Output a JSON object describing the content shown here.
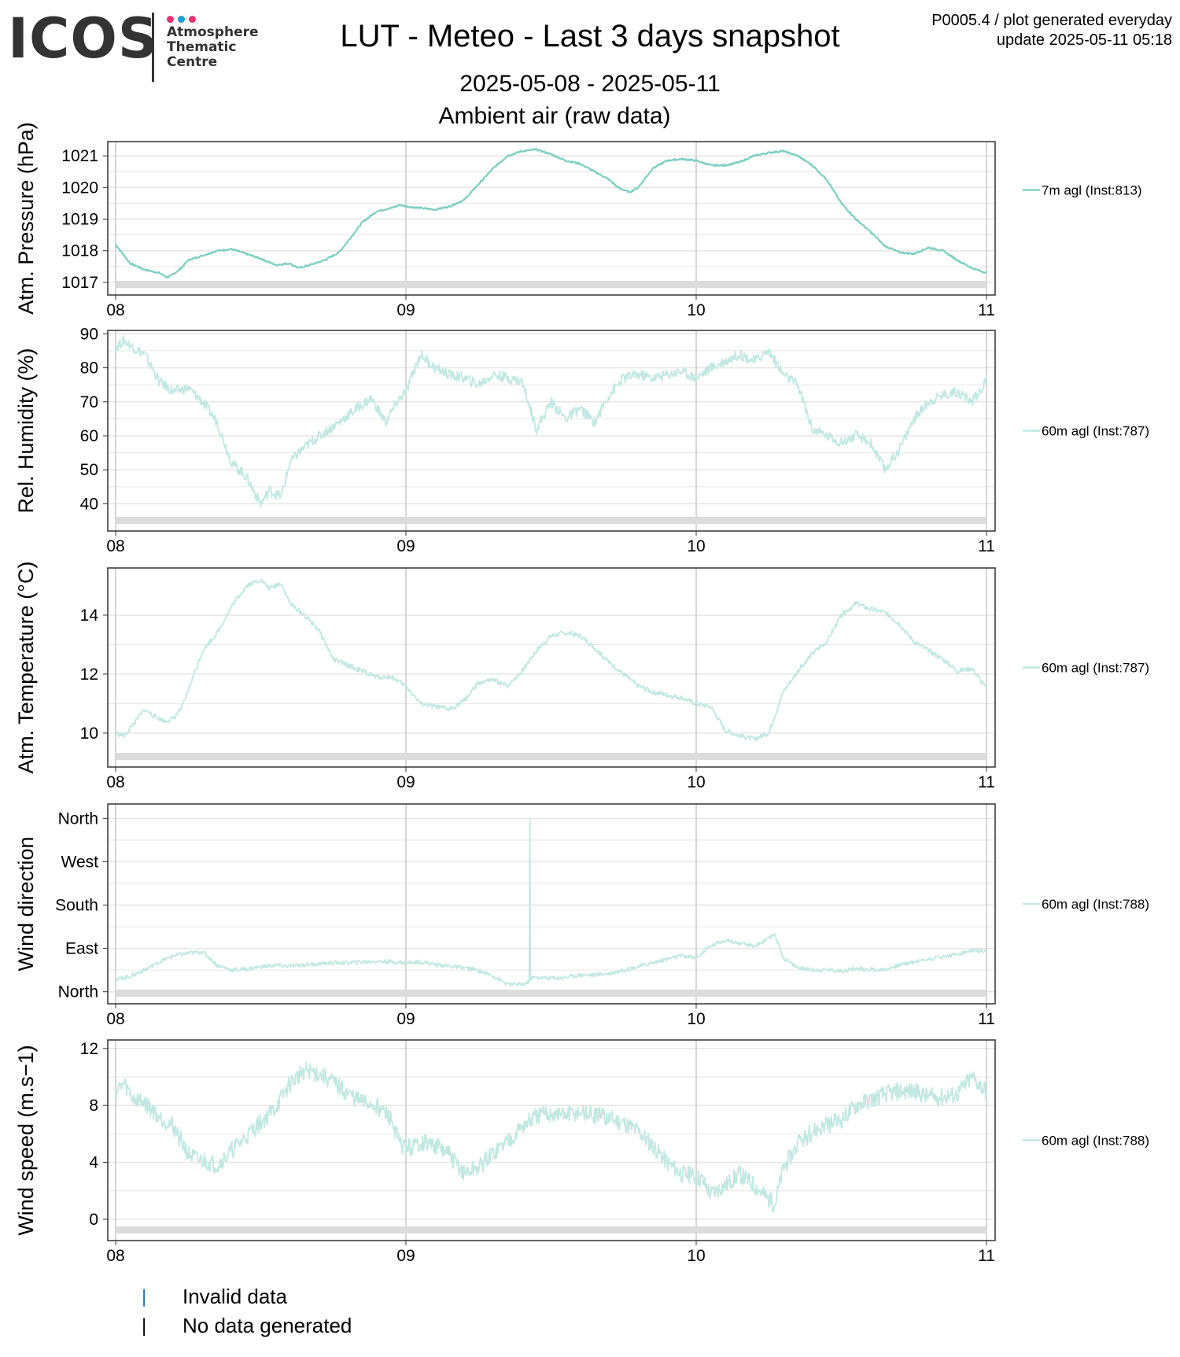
{
  "header": {
    "logo_text": "ICOS",
    "logo_subtitle_lines": [
      "Atmosphere",
      "Thematic",
      "Centre"
    ],
    "logo_dot_colors": [
      "#e8336e",
      "#1f9ad6",
      "#e8336e"
    ],
    "title": "LUT - Meteo - Last 3 days snapshot",
    "date_range": "2025-05-08 - 2025-05-11",
    "section": "Ambient air (raw data)",
    "meta_line1": "P0005.4 / plot generated everyday",
    "meta_line2": "update  2025-05-11 05:18"
  },
  "footer_legend": {
    "invalid_label": "Invalid data",
    "invalid_color": "#1f77b4",
    "nodata_label": "No data generated",
    "nodata_color": "#000000"
  },
  "colors": {
    "pressure_line": "#7fcfc1",
    "series_line": "#c2e8e1",
    "gridline": "#e6e6e6",
    "day_line": "#c8c8c8",
    "nodata_band": "#dcdcdc"
  },
  "chart_data": [
    {
      "type": "line",
      "ylabel": "Atm. Pressure (hPa)",
      "x_tick_labels": [
        "08",
        "09",
        "10",
        "11"
      ],
      "xlim": [
        0,
        3
      ],
      "ylim": [
        1016.6,
        1021.45
      ],
      "y_ticks": [
        1017,
        1018,
        1019,
        1020,
        1021
      ],
      "y_tick_labels": [
        "1017",
        "1018",
        "1019",
        "1020",
        "1021"
      ],
      "series": [
        {
          "name": "7m agl (Inst:813)",
          "x": [
            0.0,
            0.05,
            0.1,
            0.15,
            0.18,
            0.22,
            0.25,
            0.3,
            0.35,
            0.4,
            0.45,
            0.5,
            0.55,
            0.6,
            0.63,
            0.67,
            0.72,
            0.77,
            0.8,
            0.85,
            0.9,
            0.95,
            0.98,
            1.0,
            1.05,
            1.1,
            1.15,
            1.2,
            1.25,
            1.3,
            1.35,
            1.4,
            1.45,
            1.5,
            1.55,
            1.6,
            1.65,
            1.7,
            1.73,
            1.77,
            1.8,
            1.85,
            1.9,
            1.95,
            2.0,
            2.05,
            2.1,
            2.15,
            2.2,
            2.25,
            2.3,
            2.35,
            2.4,
            2.45,
            2.5,
            2.55,
            2.6,
            2.65,
            2.7,
            2.75,
            2.8,
            2.85,
            2.9,
            2.95,
            3.0
          ],
          "y": [
            1018.2,
            1017.6,
            1017.4,
            1017.3,
            1017.15,
            1017.4,
            1017.7,
            1017.85,
            1018.0,
            1018.05,
            1017.9,
            1017.75,
            1017.55,
            1017.6,
            1017.45,
            1017.55,
            1017.7,
            1017.95,
            1018.3,
            1018.9,
            1019.25,
            1019.35,
            1019.45,
            1019.4,
            1019.35,
            1019.3,
            1019.4,
            1019.6,
            1020.1,
            1020.6,
            1021.0,
            1021.15,
            1021.2,
            1021.05,
            1020.85,
            1020.75,
            1020.5,
            1020.25,
            1020.0,
            1019.85,
            1020.0,
            1020.6,
            1020.85,
            1020.9,
            1020.85,
            1020.7,
            1020.7,
            1020.8,
            1021.0,
            1021.1,
            1021.15,
            1021.0,
            1020.7,
            1020.25,
            1019.5,
            1019.0,
            1018.6,
            1018.15,
            1017.95,
            1017.9,
            1018.1,
            1018.0,
            1017.7,
            1017.45,
            1017.3
          ]
        }
      ]
    },
    {
      "type": "line",
      "ylabel": "Rel. Humidity (%)",
      "x_tick_labels": [
        "08",
        "09",
        "10",
        "11"
      ],
      "xlim": [
        0,
        3
      ],
      "ylim": [
        32,
        91
      ],
      "y_ticks": [
        40,
        50,
        60,
        70,
        80,
        90
      ],
      "y_tick_labels": [
        "40",
        "50",
        "60",
        "70",
        "80",
        "90"
      ],
      "series": [
        {
          "name": "60m agl (Inst:787)",
          "x": [
            0.0,
            0.03,
            0.06,
            0.1,
            0.15,
            0.2,
            0.25,
            0.3,
            0.35,
            0.4,
            0.45,
            0.5,
            0.53,
            0.57,
            0.6,
            0.63,
            0.67,
            0.72,
            0.77,
            0.83,
            0.88,
            0.93,
            0.97,
            1.0,
            1.05,
            1.1,
            1.15,
            1.2,
            1.25,
            1.3,
            1.35,
            1.4,
            1.45,
            1.5,
            1.55,
            1.6,
            1.65,
            1.7,
            1.75,
            1.8,
            1.85,
            1.9,
            1.95,
            2.0,
            2.05,
            2.1,
            2.15,
            2.2,
            2.25,
            2.3,
            2.35,
            2.4,
            2.45,
            2.5,
            2.55,
            2.6,
            2.65,
            2.7,
            2.75,
            2.8,
            2.85,
            2.9,
            2.95,
            3.0
          ],
          "y": [
            86,
            88,
            86,
            84,
            76,
            73,
            74,
            70,
            64,
            52,
            48,
            40,
            44,
            42,
            52,
            55,
            58,
            61,
            64,
            68,
            71,
            64,
            70,
            73,
            84,
            80,
            78,
            77,
            75,
            78,
            77,
            76,
            62,
            70,
            65,
            68,
            64,
            72,
            77,
            78,
            77,
            78,
            79,
            77,
            80,
            82,
            84,
            82,
            85,
            78,
            75,
            62,
            60,
            58,
            60,
            58,
            50,
            56,
            65,
            70,
            72,
            73,
            70,
            76
          ]
        }
      ]
    },
    {
      "type": "line",
      "ylabel": "Atm. Temperature (°C)",
      "x_tick_labels": [
        "08",
        "09",
        "10",
        "11"
      ],
      "xlim": [
        0,
        3
      ],
      "ylim": [
        8.85,
        15.6
      ],
      "y_ticks": [
        10,
        12,
        14
      ],
      "y_tick_labels": [
        "10",
        "12",
        "14"
      ],
      "series": [
        {
          "name": "60m agl (Inst:787)",
          "x": [
            0.0,
            0.03,
            0.06,
            0.1,
            0.13,
            0.17,
            0.2,
            0.23,
            0.27,
            0.3,
            0.35,
            0.4,
            0.45,
            0.5,
            0.53,
            0.57,
            0.6,
            0.65,
            0.7,
            0.75,
            0.8,
            0.85,
            0.9,
            0.95,
            1.0,
            1.05,
            1.1,
            1.15,
            1.2,
            1.25,
            1.3,
            1.35,
            1.4,
            1.45,
            1.5,
            1.55,
            1.6,
            1.65,
            1.7,
            1.75,
            1.8,
            1.85,
            1.9,
            1.95,
            2.0,
            2.05,
            2.1,
            2.15,
            2.2,
            2.25,
            2.3,
            2.35,
            2.4,
            2.45,
            2.5,
            2.55,
            2.6,
            2.65,
            2.7,
            2.75,
            2.8,
            2.85,
            2.9,
            2.95,
            3.0
          ],
          "y": [
            10.0,
            9.9,
            10.3,
            10.8,
            10.6,
            10.4,
            10.5,
            10.9,
            12.0,
            12.8,
            13.4,
            14.3,
            15.0,
            15.2,
            14.9,
            15.1,
            14.4,
            14.0,
            13.5,
            12.5,
            12.3,
            12.1,
            11.9,
            11.9,
            11.6,
            11.0,
            10.9,
            10.8,
            11.1,
            11.7,
            11.8,
            11.6,
            12.1,
            12.8,
            13.3,
            13.4,
            13.3,
            12.9,
            12.4,
            12.0,
            11.6,
            11.4,
            11.3,
            11.2,
            11.0,
            10.9,
            10.1,
            9.9,
            9.8,
            10.0,
            11.4,
            12.1,
            12.7,
            13.1,
            14.0,
            14.4,
            14.2,
            14.1,
            13.7,
            13.1,
            12.8,
            12.5,
            12.1,
            12.2,
            11.5
          ]
        }
      ]
    },
    {
      "type": "line",
      "ylabel": "Wind direction",
      "x_tick_labels": [
        "08",
        "09",
        "10",
        "11"
      ],
      "xlim": [
        0,
        3
      ],
      "ylim": [
        -25,
        390
      ],
      "y_ticks": [
        0,
        90,
        180,
        270,
        360
      ],
      "y_tick_labels": [
        "North",
        "East",
        "South",
        "West",
        "North"
      ],
      "series": [
        {
          "name": "60m agl (Inst:788)",
          "x": [
            0.0,
            0.05,
            0.1,
            0.15,
            0.2,
            0.25,
            0.3,
            0.35,
            0.4,
            0.45,
            0.5,
            0.55,
            0.6,
            0.65,
            0.7,
            0.75,
            0.8,
            0.85,
            0.9,
            0.95,
            1.0,
            1.05,
            1.1,
            1.15,
            1.2,
            1.25,
            1.3,
            1.35,
            1.4,
            1.425,
            1.427,
            1.429,
            1.431,
            1.45,
            1.5,
            1.55,
            1.6,
            1.65,
            1.7,
            1.75,
            1.8,
            1.85,
            1.9,
            1.95,
            2.0,
            2.05,
            2.1,
            2.15,
            2.2,
            2.25,
            2.27,
            2.3,
            2.35,
            2.4,
            2.45,
            2.5,
            2.55,
            2.6,
            2.65,
            2.7,
            2.75,
            2.8,
            2.85,
            2.9,
            2.95,
            3.0
          ],
          "y": [
            25,
            32,
            45,
            62,
            75,
            80,
            83,
            55,
            45,
            47,
            52,
            55,
            53,
            56,
            58,
            60,
            60,
            62,
            63,
            62,
            60,
            62,
            57,
            53,
            50,
            44,
            33,
            15,
            15,
            20,
            360,
            30,
            28,
            30,
            28,
            30,
            35,
            35,
            38,
            45,
            52,
            60,
            68,
            75,
            70,
            95,
            108,
            100,
            95,
            110,
            120,
            70,
            50,
            45,
            46,
            43,
            48,
            46,
            46,
            56,
            62,
            68,
            73,
            78,
            86,
            82
          ]
        }
      ]
    },
    {
      "type": "line",
      "ylabel": "Wind speed (m.s−1)",
      "x_tick_labels": [
        "08",
        "09",
        "10",
        "11"
      ],
      "xlim": [
        0,
        3
      ],
      "ylim": [
        -1.5,
        12.6
      ],
      "y_ticks": [
        0,
        4,
        8,
        12
      ],
      "y_tick_labels": [
        "0",
        "4",
        "8",
        "12"
      ],
      "series": [
        {
          "name": "60m agl (Inst:788)",
          "x": [
            0.0,
            0.03,
            0.06,
            0.1,
            0.15,
            0.2,
            0.25,
            0.28,
            0.32,
            0.35,
            0.4,
            0.45,
            0.5,
            0.55,
            0.6,
            0.65,
            0.7,
            0.75,
            0.8,
            0.85,
            0.9,
            0.95,
            0.98,
            1.02,
            1.05,
            1.1,
            1.15,
            1.2,
            1.25,
            1.3,
            1.35,
            1.4,
            1.45,
            1.5,
            1.55,
            1.6,
            1.65,
            1.7,
            1.75,
            1.8,
            1.85,
            1.9,
            1.95,
            1.98,
            2.02,
            2.05,
            2.1,
            2.15,
            2.2,
            2.25,
            2.27,
            2.3,
            2.35,
            2.4,
            2.45,
            2.5,
            2.55,
            2.6,
            2.65,
            2.7,
            2.75,
            2.8,
            2.85,
            2.9,
            2.95,
            3.0
          ],
          "y": [
            9,
            9.5,
            8.5,
            8.2,
            7.2,
            6.5,
            4.6,
            4.2,
            4.0,
            3.8,
            4.8,
            5.8,
            6.8,
            7.8,
            9.5,
            10.5,
            10.2,
            9.6,
            8.8,
            8.2,
            8.0,
            7.0,
            5.2,
            5.0,
            5.4,
            5.2,
            4.5,
            3.2,
            3.6,
            4.6,
            5.5,
            6.5,
            7.2,
            7.4,
            7.3,
            7.5,
            7.3,
            7.1,
            6.8,
            6.2,
            5.2,
            4.0,
            3.2,
            3.1,
            2.8,
            1.8,
            2.4,
            3.2,
            2.4,
            1.4,
            1.0,
            3.6,
            5.2,
            6.2,
            6.6,
            7.0,
            8.0,
            8.4,
            8.8,
            9.0,
            9.0,
            8.6,
            8.6,
            8.8,
            10.0,
            9.0
          ]
        }
      ]
    }
  ]
}
